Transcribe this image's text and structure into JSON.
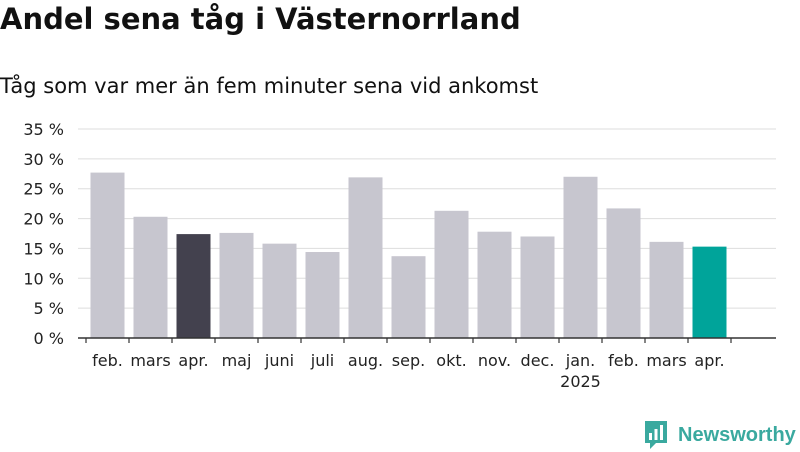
{
  "title": "Andel sena tåg i Västernorrland",
  "subtitle": "Tåg som var mer än fem minuter sena vid ankomst",
  "brand": {
    "name": "Newsworthy",
    "icon": "newsworthy-logo-icon"
  },
  "colors": {
    "bar_default": "#c7c6cf",
    "bar_highlight_previous": "#43414e",
    "bar_highlight_current": "#00a49a",
    "grid": "#dddddd",
    "axis": "#333333",
    "brand": "#3aa99f"
  },
  "chart_data": {
    "type": "bar",
    "categories": [
      "feb.",
      "mars",
      "apr.",
      "maj",
      "juni",
      "juli",
      "aug.",
      "sep.",
      "okt.",
      "nov.",
      "dec.",
      "jan.",
      "feb.",
      "mars",
      "apr."
    ],
    "year_labels": [
      {
        "category_index": 11,
        "label": "2025"
      }
    ],
    "values": [
      27.7,
      20.3,
      17.4,
      17.6,
      15.8,
      14.4,
      26.9,
      13.7,
      21.3,
      17.8,
      17.0,
      27.0,
      21.7,
      16.1,
      15.3
    ],
    "highlight": {
      "2": "bar_highlight_previous",
      "14": "bar_highlight_current"
    },
    "yticks": [
      0,
      5,
      10,
      15,
      20,
      25,
      30,
      35
    ],
    "ytick_suffix": " %",
    "ylim": [
      0,
      35
    ],
    "grid": true,
    "xlabel": "",
    "ylabel": ""
  }
}
